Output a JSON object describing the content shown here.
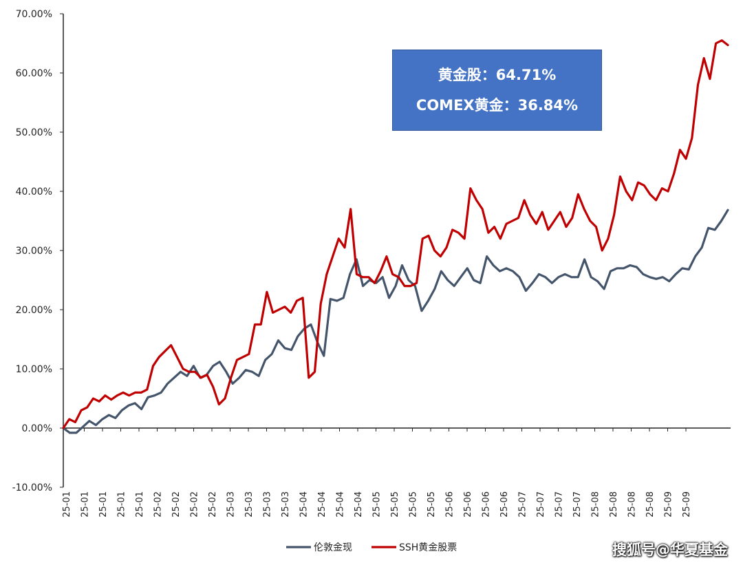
{
  "chart_data": {
    "type": "line",
    "title": "",
    "xlabel": "",
    "ylabel": "",
    "ylim": [
      -10,
      70
    ],
    "y_ticks": [
      "70.00%",
      "60.00%",
      "50.00%",
      "40.00%",
      "30.00%",
      "20.00%",
      "10.00%",
      "0.00%",
      "-10.00%"
    ],
    "y_tick_values": [
      70,
      60,
      50,
      40,
      30,
      20,
      10,
      0,
      -10
    ],
    "x_ticks": [
      "25-01",
      "25-01",
      "25-01",
      "25-01",
      "25-01",
      "25-02",
      "25-02",
      "25-02",
      "25-02",
      "25-03",
      "25-03",
      "25-03",
      "25-03",
      "25-04",
      "25-04",
      "25-04",
      "25-04",
      "25-05",
      "25-05",
      "25-05",
      "25-05",
      "25-06",
      "25-06",
      "25-06",
      "25-06",
      "25-07",
      "25-07",
      "25-07",
      "25-07",
      "25-08",
      "25-08",
      "25-08",
      "25-08",
      "25-09",
      "25-09"
    ],
    "legend_position": "bottom",
    "grid": false,
    "series": [
      {
        "name": "伦敦金现",
        "color": "#44546a",
        "values": [
          0,
          -0.8,
          -0.8,
          0.2,
          1.2,
          0.5,
          1.5,
          2.2,
          1.7,
          3.0,
          3.8,
          4.2,
          3.2,
          5.2,
          5.5,
          6.0,
          7.5,
          8.5,
          9.5,
          8.8,
          10.5,
          8.5,
          9.0,
          10.5,
          11.2,
          9.5,
          7.5,
          8.5,
          9.8,
          9.5,
          8.8,
          11.5,
          12.5,
          14.8,
          13.5,
          13.2,
          15.5,
          16.8,
          17.5,
          14.5,
          12.2,
          21.8,
          21.5,
          22.0,
          26.0,
          28.5,
          24.0,
          25.0,
          24.5,
          25.5,
          22.0,
          24.0,
          27.5,
          25.0,
          24.0,
          19.8,
          21.5,
          23.5,
          26.5,
          25.0,
          24.0,
          25.5,
          27.0,
          25.0,
          24.5,
          29.0,
          27.5,
          26.5,
          27.0,
          26.5,
          25.5,
          23.2,
          24.5,
          26.0,
          25.5,
          24.5,
          25.5,
          26.0,
          25.5,
          25.5,
          28.5,
          25.5,
          24.8,
          23.5,
          26.5,
          27.0,
          27.0,
          27.5,
          27.2,
          26.0,
          25.5,
          25.2,
          25.5,
          24.8,
          26.0,
          27.0,
          26.8,
          29.0,
          30.5,
          33.8,
          33.5,
          35.0,
          36.84
        ]
      },
      {
        "name": "SSH黄金股票",
        "color": "#c00000",
        "values": [
          0,
          1.5,
          1.0,
          3.0,
          3.5,
          5.0,
          4.5,
          5.5,
          4.8,
          5.5,
          6.0,
          5.5,
          6.0,
          6.0,
          6.5,
          10.5,
          12.0,
          13.0,
          14.0,
          12.0,
          10.0,
          9.5,
          9.5,
          8.5,
          9.0,
          7.0,
          4.0,
          5.0,
          8.5,
          11.5,
          12.0,
          12.5,
          17.5,
          17.5,
          23.0,
          19.5,
          20.0,
          20.5,
          19.5,
          21.5,
          22.0,
          8.5,
          9.5,
          21.0,
          26.0,
          29.0,
          32.0,
          30.5,
          37.0,
          26.0,
          25.5,
          25.5,
          24.5,
          26.5,
          29.0,
          26.0,
          25.5,
          24.0,
          24.0,
          24.5,
          32.0,
          32.5,
          30.0,
          29.0,
          30.5,
          33.5,
          33.0,
          32.0,
          40.5,
          38.5,
          37.0,
          33.0,
          34.0,
          32.0,
          34.5,
          35.0,
          35.5,
          38.5,
          36.0,
          34.5,
          36.5,
          33.5,
          35.0,
          36.5,
          34.0,
          35.5,
          39.5,
          37.0,
          35.0,
          34.0,
          30.0,
          32.0,
          36.0,
          42.5,
          40.0,
          38.5,
          41.5,
          41.0,
          39.5,
          38.5,
          40.5,
          40.0,
          43.0,
          47.0,
          45.5,
          49.0,
          58.0,
          62.5,
          59.0,
          65.0,
          65.5,
          64.71
        ]
      }
    ]
  },
  "annotation": {
    "line1": "黄金股：64.71%",
    "line2": "COMEX黄金：36.84%",
    "bg_color": "#4472c4"
  },
  "watermark": "搜狐号@华夏基金"
}
